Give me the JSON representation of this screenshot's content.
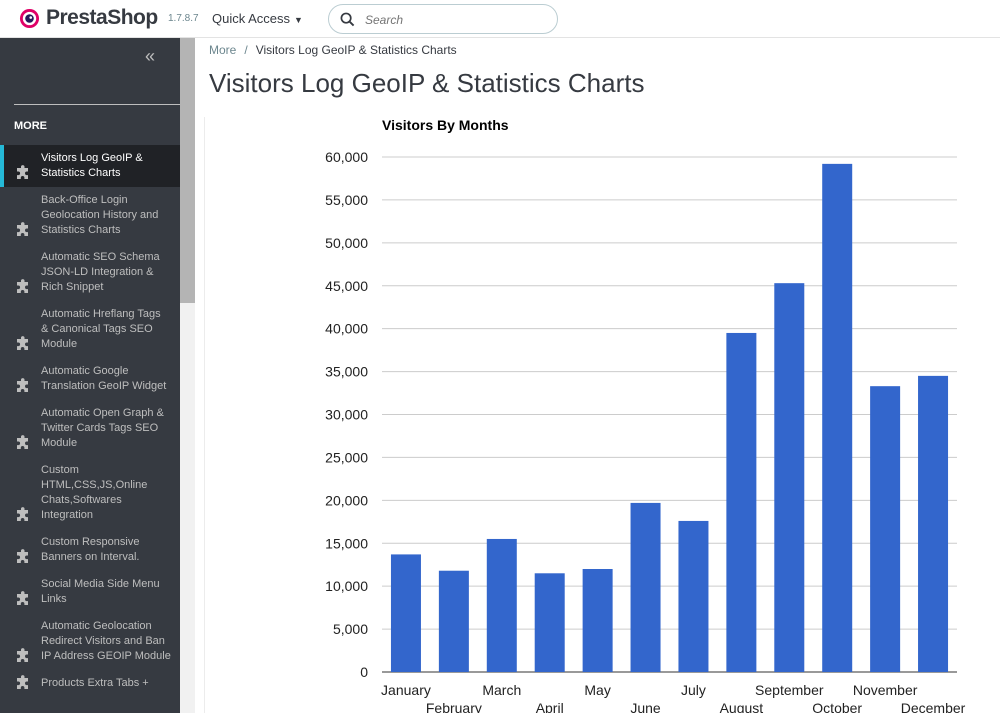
{
  "header": {
    "brand": "PrestaShop",
    "version": "1.7.8.7",
    "quick_access": "Quick Access",
    "search_placeholder": "Search"
  },
  "sidebar": {
    "section": "MORE",
    "items": [
      {
        "label": "Visitors Log GeoIP & Statistics Charts",
        "lines": [
          "Visitors Log GeoIP &",
          "Statistics Charts"
        ],
        "active": true
      },
      {
        "label": "Back-Office Login Geolocation History and Statistics Charts",
        "lines": [
          "Back-Office Login",
          "Geolocation History and",
          "Statistics Charts"
        ]
      },
      {
        "label": "Automatic SEO Schema JSON-LD Integration & Rich Snippet",
        "lines": [
          "Automatic SEO Schema",
          "JSON-LD Integration &",
          "Rich Snippet"
        ]
      },
      {
        "label": "Automatic Hreflang Tags & Canonical Tags SEO Module",
        "lines": [
          "Automatic Hreflang Tags",
          "& Canonical Tags SEO",
          "Module"
        ]
      },
      {
        "label": "Automatic Google Translation GeoIP Widget",
        "lines": [
          "Automatic Google",
          "Translation GeoIP Widget"
        ]
      },
      {
        "label": "Automatic Open Graph & Twitter Cards Tags SEO Module",
        "lines": [
          "Automatic Open Graph &",
          "Twitter Cards Tags SEO",
          "Module"
        ]
      },
      {
        "label": "Custom HTML,CSS,JS,Online Chats,Softwares Integration",
        "lines": [
          "Custom",
          "HTML,CSS,JS,Online",
          "Chats,Softwares",
          "Integration"
        ]
      },
      {
        "label": "Custom Responsive Banners on Interval.",
        "lines": [
          "Custom Responsive",
          "Banners on Interval."
        ]
      },
      {
        "label": "Social Media Side Menu Links",
        "lines": [
          "Social Media Side Menu",
          "Links"
        ]
      },
      {
        "label": "Automatic Geolocation Redirect Visitors and Ban IP Address GEOIP Module",
        "lines": [
          "Automatic Geolocation",
          "Redirect Visitors and Ban",
          "IP Address GEOIP Module"
        ]
      },
      {
        "label": "Products Extra Tabs +",
        "lines": [
          "Products Extra Tabs +"
        ]
      }
    ]
  },
  "breadcrumb": {
    "parent": "More",
    "current": "Visitors Log GeoIP & Statistics Charts"
  },
  "page_title": "Visitors Log GeoIP & Statistics Charts",
  "colors": {
    "bar": "#3366cc",
    "accent": "#25b9d7",
    "sidebar": "#363a41"
  },
  "chart_data": {
    "type": "bar",
    "title": "Visitors By Months",
    "categories": [
      "January",
      "February",
      "March",
      "April",
      "May",
      "June",
      "July",
      "August",
      "September",
      "October",
      "November",
      "December"
    ],
    "values": [
      13700,
      11800,
      15500,
      11500,
      12000,
      19700,
      17600,
      39500,
      45300,
      59200,
      33300,
      34500
    ],
    "ylim": [
      0,
      60000
    ],
    "yticks": [
      0,
      5000,
      10000,
      15000,
      20000,
      25000,
      30000,
      35000,
      40000,
      45000,
      50000,
      55000,
      60000
    ],
    "ytick_labels": [
      "0",
      "5,000",
      "10,000",
      "15,000",
      "20,000",
      "25,000",
      "30,000",
      "35,000",
      "40,000",
      "45,000",
      "50,000",
      "55,000",
      "60,000"
    ],
    "grid": true,
    "legend": "none"
  }
}
